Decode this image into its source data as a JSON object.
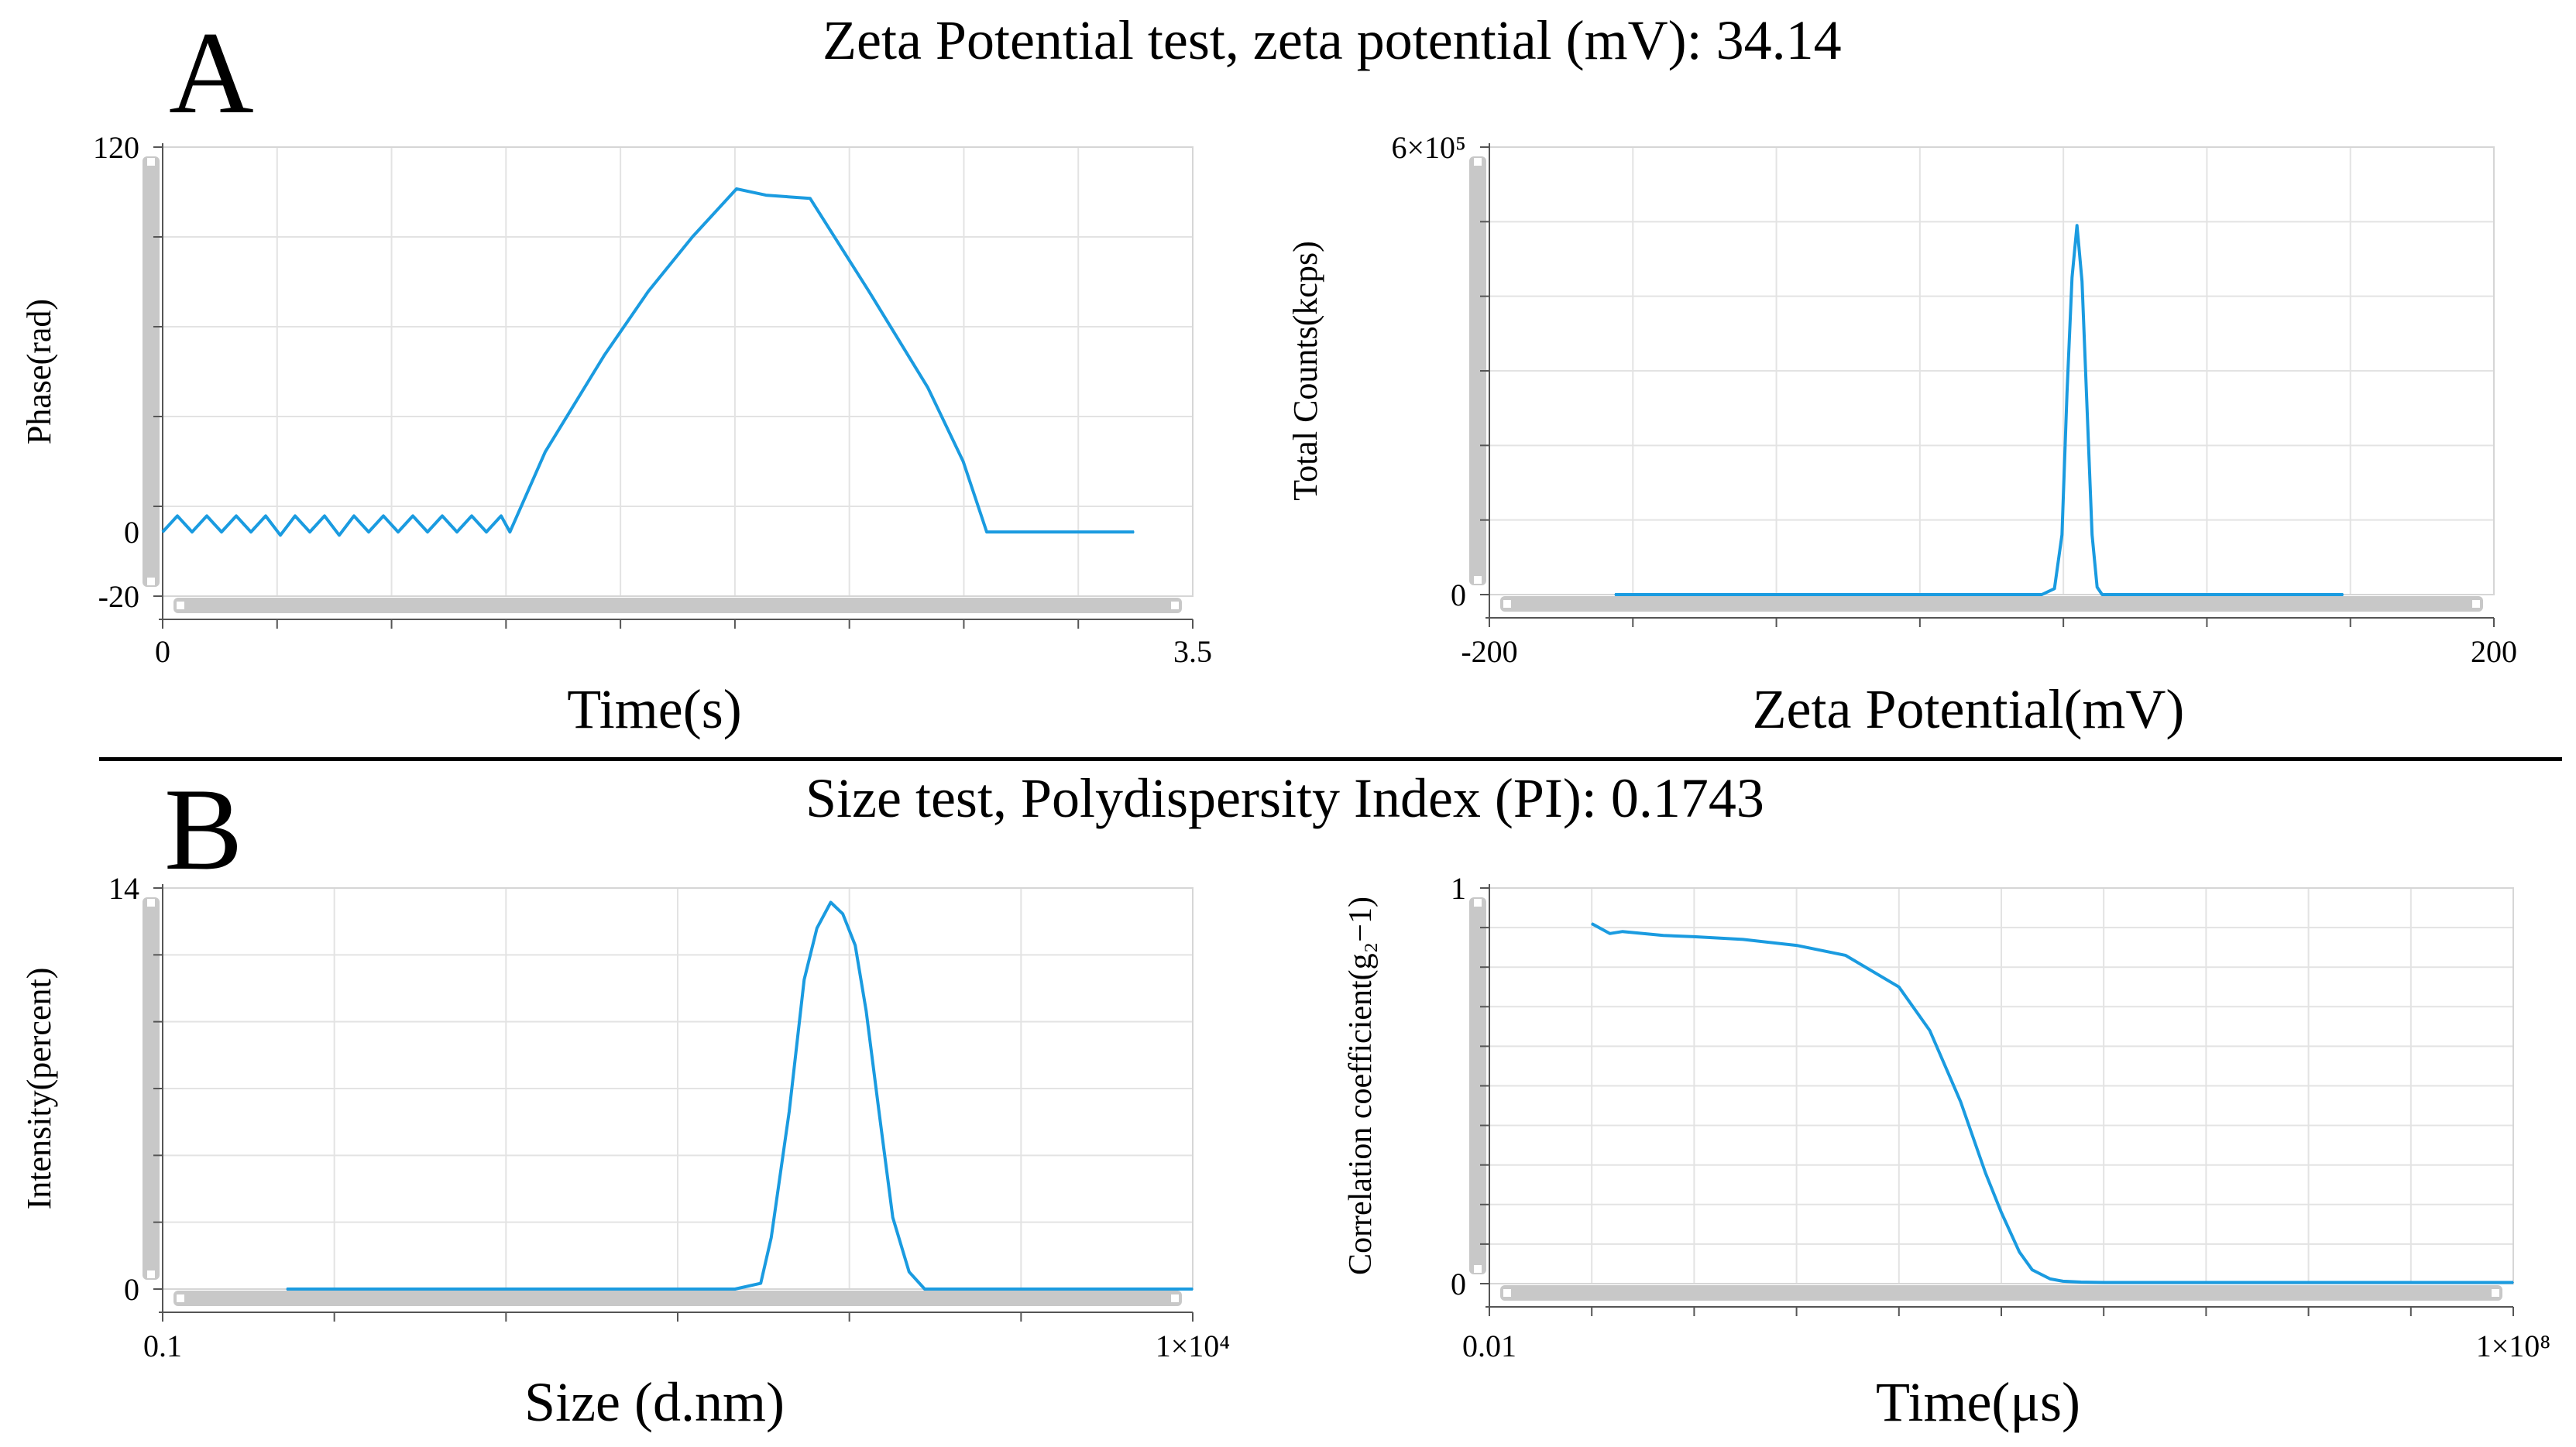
{
  "colors": {
    "line": "#1a9be0",
    "grid": "#e3e3e3",
    "scrollbar": "#c8c8c8",
    "axis": "#555555"
  },
  "panels": {
    "A": {
      "letter": "A",
      "title": "Zeta Potential test, zeta potential (mV): 34.14"
    },
    "B": {
      "letter": "B",
      "title": "Size test, Polydispersity Index (PI): 0.1743"
    }
  },
  "chart_data": [
    {
      "id": "phase",
      "type": "line",
      "xlabel": "Time(s)",
      "ylabel": "Phase(rad)",
      "xlim": [
        0,
        3.5
      ],
      "ylim": [
        -20,
        120
      ],
      "xscale": "linear",
      "xticks": [
        {
          "v": 0,
          "label": "0"
        },
        {
          "v": 3.5,
          "label": "3.5"
        }
      ],
      "yticks": [
        {
          "v": 120,
          "label": "120"
        },
        {
          "v": 0,
          "label": "0"
        },
        {
          "v": -20,
          "label": "-20"
        }
      ],
      "series": [
        {
          "name": "Phase",
          "x": [
            0,
            0.05,
            0.1,
            0.15,
            0.2,
            0.25,
            0.3,
            0.35,
            0.4,
            0.45,
            0.5,
            0.55,
            0.6,
            0.65,
            0.7,
            0.75,
            0.8,
            0.85,
            0.9,
            0.95,
            1.0,
            1.05,
            1.1,
            1.15,
            1.18,
            1.3,
            1.4,
            1.5,
            1.65,
            1.8,
            1.95,
            2.05,
            2.2,
            2.4,
            2.6,
            2.72,
            2.8,
            2.9,
            3.0,
            3.1,
            3.2,
            3.3
          ],
          "y": [
            0,
            5,
            0,
            5,
            0,
            5,
            0,
            5,
            -1,
            5,
            0,
            5,
            -1,
            5,
            0,
            5,
            0,
            5,
            0,
            5,
            0,
            5,
            0,
            5,
            0,
            25,
            40,
            55,
            75,
            92,
            107,
            105,
            104,
            75,
            45,
            22,
            0,
            0,
            0,
            0,
            0,
            0
          ]
        }
      ]
    },
    {
      "id": "zeta",
      "type": "line",
      "xlabel": "Zeta Potential(mV)",
      "ylabel": "Total Counts(kcps)",
      "xlim": [
        -200,
        200
      ],
      "ylim": [
        0,
        600000
      ],
      "xscale": "linear",
      "xticks": [
        {
          "v": -200,
          "label": "-200"
        },
        {
          "v": 200,
          "label": "200"
        }
      ],
      "yticks": [
        {
          "v": 600000,
          "label": "6×10⁵"
        },
        {
          "v": 0,
          "label": "0"
        }
      ],
      "series": [
        {
          "name": "Total Counts",
          "x": [
            -150,
            -120,
            -80,
            -40,
            0,
            20,
            25,
            28,
            30,
            32,
            34,
            36,
            38,
            40,
            42,
            44,
            48,
            60,
            100,
            140
          ],
          "y": [
            0,
            0,
            0,
            0,
            0,
            0,
            8000,
            80000,
            270000,
            425000,
            495000,
            420000,
            250000,
            80000,
            10000,
            0,
            0,
            0,
            0,
            0
          ]
        }
      ]
    },
    {
      "id": "size",
      "type": "line",
      "xlabel": "Size (d.nm)",
      "ylabel": "Intensity(percent)",
      "xlim": [
        0.1,
        10000
      ],
      "ylim": [
        0,
        14
      ],
      "xscale": "log",
      "xticks": [
        {
          "v": 0.1,
          "label": "0.1"
        },
        {
          "v": 10000,
          "label": "1×10⁴"
        }
      ],
      "yticks": [
        {
          "v": 14,
          "label": "14"
        },
        {
          "v": 0,
          "label": "0"
        }
      ],
      "series": [
        {
          "name": "Intensity",
          "x": [
            0.4,
            1,
            5,
            20,
            60,
            80,
            90,
            110,
            130,
            150,
            175,
            200,
            230,
            260,
            300,
            350,
            420,
            500,
            600,
            800,
            2000,
            10000
          ],
          "y": [
            0,
            0,
            0,
            0,
            0,
            0.2,
            1.8,
            6.2,
            10.8,
            12.6,
            13.5,
            13.1,
            12.0,
            9.7,
            6.2,
            2.5,
            0.6,
            0,
            0,
            0,
            0,
            0
          ]
        }
      ]
    },
    {
      "id": "corr",
      "type": "line",
      "xlabel": "Time(μs)",
      "ylabel": "Correlation coefficient(g₂−1)",
      "xlim": [
        0.01,
        100000000
      ],
      "ylim": [
        0,
        1
      ],
      "xscale": "log",
      "xticks": [
        {
          "v": 0.01,
          "label": "0.01"
        },
        {
          "v": 100000000,
          "label": "1×10⁸"
        }
      ],
      "yticks": [
        {
          "v": 1,
          "label": "1"
        },
        {
          "v": 0,
          "label": "0"
        }
      ],
      "series": [
        {
          "name": "Correlation",
          "x": [
            0.1,
            0.15,
            0.2,
            0.5,
            1,
            3,
            10,
            30,
            100,
            200,
            400,
            700,
            1000,
            1500,
            2000,
            3000,
            4000,
            6000,
            10000,
            100000,
            1000000,
            100000000
          ],
          "y": [
            0.91,
            0.885,
            0.89,
            0.88,
            0.877,
            0.87,
            0.855,
            0.83,
            0.75,
            0.64,
            0.46,
            0.28,
            0.18,
            0.08,
            0.035,
            0.012,
            0.006,
            0.004,
            0.003,
            0.003,
            0.003,
            0.003
          ]
        }
      ]
    }
  ]
}
